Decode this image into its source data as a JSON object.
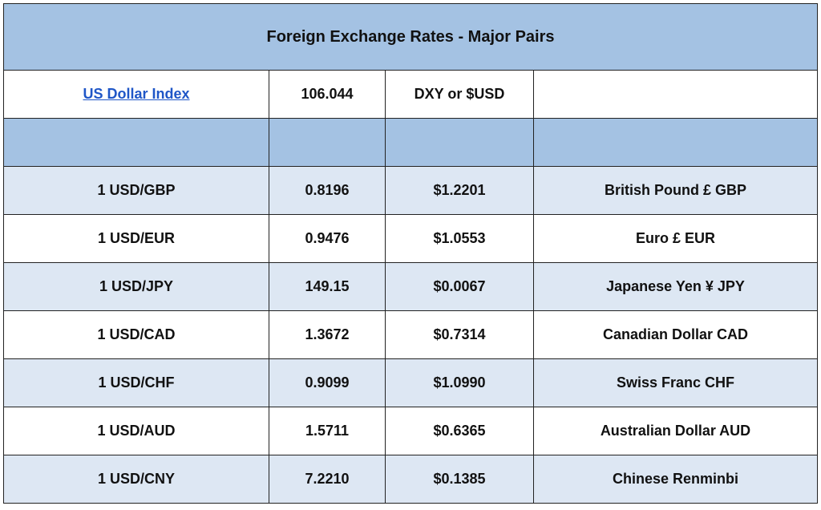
{
  "title": "Foreign Exchange Rates - Major Pairs",
  "index": {
    "label": "US Dollar Index",
    "value": "106.044",
    "symbol": "DXY or $USD"
  },
  "colors": {
    "header_bg": "#a4c2e3",
    "alt_row_bg": "#dde7f3",
    "link": "#1f56c7"
  },
  "rows": [
    {
      "pair": "1 USD/GBP",
      "rate": "0.8196",
      "usd_value": "$1.2201",
      "currency": "British Pound £ GBP"
    },
    {
      "pair": "1 USD/EUR",
      "rate": "0.9476",
      "usd_value": "$1.0553",
      "currency": "Euro £ EUR"
    },
    {
      "pair": "1 USD/JPY",
      "rate": "149.15",
      "usd_value": "$0.0067",
      "currency": "Japanese Yen ¥ JPY"
    },
    {
      "pair": "1 USD/CAD",
      "rate": "1.3672",
      "usd_value": "$0.7314",
      "currency": "Canadian Dollar CAD"
    },
    {
      "pair": "1 USD/CHF",
      "rate": "0.9099",
      "usd_value": "$1.0990",
      "currency": "Swiss Franc CHF"
    },
    {
      "pair": "1 USD/AUD",
      "rate": "1.5711",
      "usd_value": "$0.6365",
      "currency": "Australian Dollar AUD"
    },
    {
      "pair": "1 USD/CNY",
      "rate": "7.2210",
      "usd_value": "$0.1385",
      "currency": "Chinese Renminbi"
    }
  ]
}
